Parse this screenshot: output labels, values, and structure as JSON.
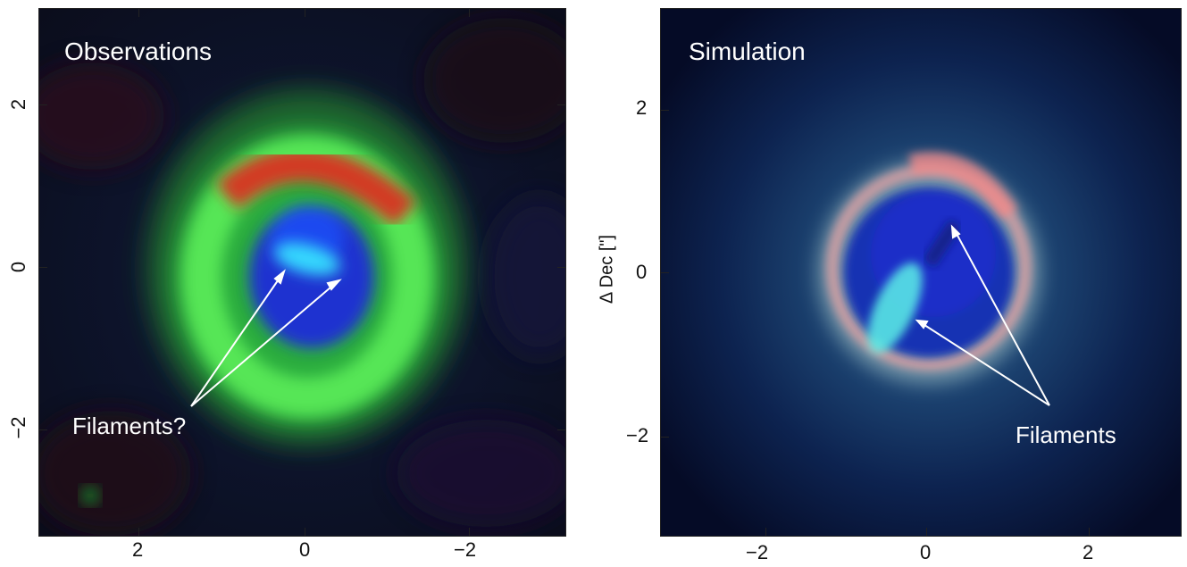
{
  "left": {
    "title": "Observations",
    "annotation": "Filaments?",
    "x_ticks": [
      "2",
      "0",
      "−2"
    ],
    "y_ticks": [
      "2",
      "0",
      "−2"
    ]
  },
  "right": {
    "title": "Simulation",
    "annotation": "Filaments",
    "y_axis_label": "Δ Dec [\"]",
    "x_ticks": [
      "−2",
      "0",
      "2"
    ],
    "y_ticks": [
      "2",
      "0",
      "−2"
    ]
  }
}
